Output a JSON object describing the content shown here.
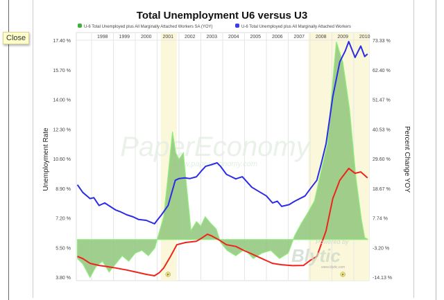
{
  "close_button": "Close",
  "watermarks": {
    "main": "PaperEconomy",
    "url": "www.papereconomy.com",
    "powered": "Powered by",
    "brand": "Blytic",
    "brand_url": "www.blytic.com"
  },
  "colors": {
    "u6": "#2b2be8",
    "u3": "#f0221c",
    "yoy_fill": "#8fc57a",
    "yoy_edge": "#8ef07a",
    "recession": "#fbf7da"
  },
  "chart_data": {
    "type": "line",
    "title": "Total Unemployment U6 versus U3",
    "ylabel_left": "Unemployment Rate",
    "ylabel_right": "Percent Change YOY",
    "legend": [
      "U-6 Total Unemployed plus All Marginally Attached Workers SA (YOY)",
      "U-6 Total Unemployed plus All Marginally Attached Workers"
    ],
    "legend_placement": "top",
    "xlim": [
      1997.3,
      2010.7
    ],
    "x_tick_labels": [
      "1998",
      "1999",
      "2000",
      "2001",
      "2002",
      "2003",
      "2004",
      "2005",
      "2006",
      "2007",
      "2008",
      "2009",
      "2010"
    ],
    "ylim_left": [
      3.8,
      17.4
    ],
    "y_ticks_left": [
      "17.40 %",
      "15.70 %",
      "14.00 %",
      "12.30 %",
      "10.60 %",
      "8.90 %",
      "7.20 %",
      "5.50 %",
      "3.80 %"
    ],
    "ylim_right": [
      -14.13,
      73.33
    ],
    "y_ticks_right": [
      "73.33 %",
      "62.40 %",
      "51.47 %",
      "40.53 %",
      "29.60 %",
      "18.67 %",
      "7.74 %",
      "-3.20 %",
      "-14.13 %"
    ],
    "recessions": [
      [
        2001.17,
        2001.9
      ],
      [
        2007.92,
        2010.7
      ]
    ],
    "recession_marker": "P",
    "series": [
      {
        "name": "U-6 Total Unemployed plus All Marginally Attached Workers",
        "axis": "left",
        "style": "line",
        "x": [
          1997.35,
          1997.6,
          1997.93,
          1998.1,
          1998.34,
          1998.6,
          1999.09,
          1999.3,
          1999.61,
          1999.9,
          2000.15,
          2000.5,
          2000.88,
          2001.0,
          2001.2,
          2001.5,
          2001.83,
          2002.0,
          2002.27,
          2002.5,
          2002.8,
          2003.0,
          2003.22,
          2003.5,
          2003.74,
          2003.9,
          2004.17,
          2004.4,
          2004.6,
          2004.9,
          2005.33,
          2005.6,
          2006.0,
          2006.28,
          2006.5,
          2006.7,
          2007.04,
          2007.3,
          2007.77,
          2008.0,
          2008.31,
          2008.5,
          2008.73,
          2009.04,
          2009.36,
          2009.6,
          2009.77,
          2010.06,
          2010.32,
          2010.5,
          2010.63
        ],
        "values": [
          9.14,
          8.7,
          8.35,
          8.4,
          7.95,
          8.1,
          7.7,
          7.6,
          7.42,
          7.3,
          7.15,
          7.1,
          6.9,
          7.1,
          7.42,
          7.95,
          9.4,
          9.5,
          9.54,
          9.5,
          9.6,
          9.9,
          10.2,
          10.3,
          10.4,
          10.2,
          9.74,
          9.6,
          9.48,
          9.6,
          9.0,
          8.8,
          8.5,
          8.1,
          8.2,
          7.9,
          8.0,
          8.2,
          8.5,
          8.9,
          9.4,
          10.3,
          11.5,
          14.2,
          16.2,
          16.8,
          17.36,
          16.45,
          17.1,
          16.5,
          16.65
        ]
      },
      {
        "name": "U-3",
        "axis": "left",
        "style": "line",
        "x": [
          1997.35,
          1997.6,
          1997.93,
          1998.34,
          1998.7,
          1999.09,
          1999.6,
          2000.15,
          2000.5,
          2000.88,
          2001.1,
          2001.3,
          2001.6,
          2001.9,
          2002.3,
          2002.8,
          2003.0,
          2003.3,
          2003.5,
          2003.8,
          2004.17,
          2004.6,
          2005.0,
          2005.33,
          2005.8,
          2006.28,
          2006.7,
          2007.2,
          2007.7,
          2008.0,
          2008.31,
          2008.73,
          2009.04,
          2009.36,
          2009.6,
          2009.77,
          2010.06,
          2010.32,
          2010.63
        ],
        "values": [
          5.03,
          4.9,
          4.63,
          4.51,
          4.45,
          4.37,
          4.25,
          4.1,
          4.0,
          3.92,
          4.1,
          4.37,
          5.0,
          5.7,
          5.83,
          5.9,
          6.05,
          6.3,
          6.2,
          6.0,
          5.7,
          5.6,
          5.35,
          5.17,
          4.9,
          4.63,
          4.55,
          4.5,
          4.51,
          4.8,
          5.03,
          6.5,
          8.35,
          9.4,
          9.8,
          10.08,
          9.8,
          9.88,
          9.54
        ]
      },
      {
        "name": "U-6 Total Unemployed plus All Marginally Attached Workers SA (YOY)",
        "axis": "right",
        "style": "area",
        "x": [
          1997.35,
          1997.6,
          1997.93,
          1998.2,
          1998.5,
          1998.8,
          1999.1,
          1999.4,
          1999.7,
          2000.0,
          2000.3,
          2000.6,
          2000.9,
          2001.0,
          2001.3,
          2001.5,
          2001.7,
          2001.85,
          2002.0,
          2002.2,
          2002.35,
          2002.55,
          2002.8,
          2003.0,
          2003.2,
          2003.45,
          2003.7,
          2003.9,
          2004.2,
          2004.6,
          2005.0,
          2005.4,
          2005.8,
          2006.2,
          2006.6,
          2007.0,
          2007.3,
          2007.6,
          2007.9,
          2008.2,
          2008.5,
          2008.8,
          2009.0,
          2009.2,
          2009.5,
          2009.8,
          2010.1,
          2010.35,
          2010.5,
          2010.63
        ],
        "values": [
          -7,
          -9,
          -14,
          -10,
          -8,
          -12,
          -9,
          -6,
          -8,
          -5,
          -4,
          -6,
          -3,
          0,
          8.4,
          23.7,
          39.8,
          32,
          29.6,
          32,
          19.4,
          3.3,
          6.6,
          5,
          8.4,
          6,
          3.9,
          -1,
          -4,
          -6,
          -3.6,
          -7,
          -5,
          -4,
          -7,
          -5,
          1.5,
          6,
          9.9,
          14.3,
          25,
          35.5,
          55,
          73,
          65.4,
          48.3,
          22.7,
          7.3,
          0.7,
          0.2
        ]
      }
    ]
  }
}
